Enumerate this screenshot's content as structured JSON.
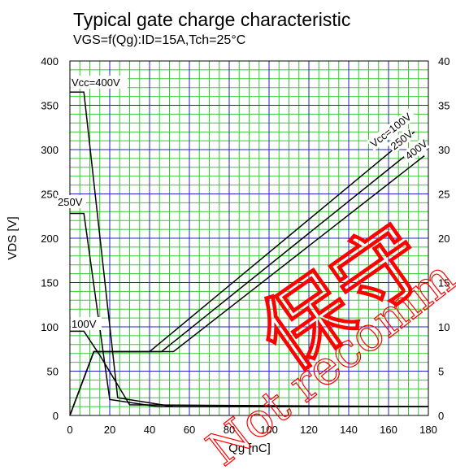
{
  "chart_data": {
    "type": "line",
    "title": "Typical gate charge characteristic",
    "subtitle": "VGS=f(Qg):ID=15A,Tch=25°C",
    "xlabel": "Qg [nC]",
    "ylabel": "VDS [V]",
    "xlim": [
      0,
      180
    ],
    "ylim": [
      0,
      400
    ],
    "y2lim": [
      0,
      40
    ],
    "x_ticks": [
      "0",
      "20",
      "40",
      "60",
      "80",
      "100",
      "120",
      "140",
      "160",
      "180"
    ],
    "y_ticks": [
      "0",
      "50",
      "100",
      "150",
      "200",
      "250",
      "300",
      "350",
      "400"
    ],
    "y2_ticks": [
      "0",
      "5",
      "10",
      "15",
      "20",
      "25",
      "30",
      "35",
      "40"
    ],
    "grid": true,
    "series": [
      {
        "name": "Vcc=400V",
        "axis": "left",
        "x": [
          0,
          7,
          24,
          52,
          180
        ],
        "y": [
          365,
          365,
          20,
          10,
          10
        ]
      },
      {
        "name": "250V",
        "axis": "left",
        "x": [
          0,
          7,
          20,
          44,
          180
        ],
        "y": [
          228,
          228,
          18,
          10,
          10
        ]
      },
      {
        "name": "100V",
        "axis": "left",
        "x": [
          0,
          7,
          15,
          30,
          180
        ],
        "y": [
          95,
          95,
          68,
          12,
          10
        ]
      },
      {
        "name": "Vcc=100V",
        "axis": "right",
        "x": [
          0,
          12,
          40,
          173
        ],
        "y": [
          0,
          7.2,
          7.2,
          32
        ]
      },
      {
        "name": "250V",
        "axis": "right",
        "x": [
          0,
          12,
          46,
          175
        ],
        "y": [
          0,
          7.2,
          7.2,
          30.5
        ]
      },
      {
        "name": "400V",
        "axis": "right",
        "x": [
          0,
          12,
          52,
          178
        ],
        "y": [
          0,
          7.2,
          7.2,
          29.3
        ]
      }
    ],
    "labels": {
      "vds_400": "Vcc=400V",
      "vds_250": "250V",
      "vds_100": "100V",
      "vgs_100": "Vcc=100V",
      "vgs_250": "250V",
      "vgs_400": "400V"
    },
    "watermark": {
      "cjk": "保守",
      "text": "Not recomm"
    }
  },
  "colors": {
    "minor_grid": "#33cc33",
    "major_grid": "#2222cc",
    "line": "#000000",
    "watermark": "#ff0000"
  }
}
